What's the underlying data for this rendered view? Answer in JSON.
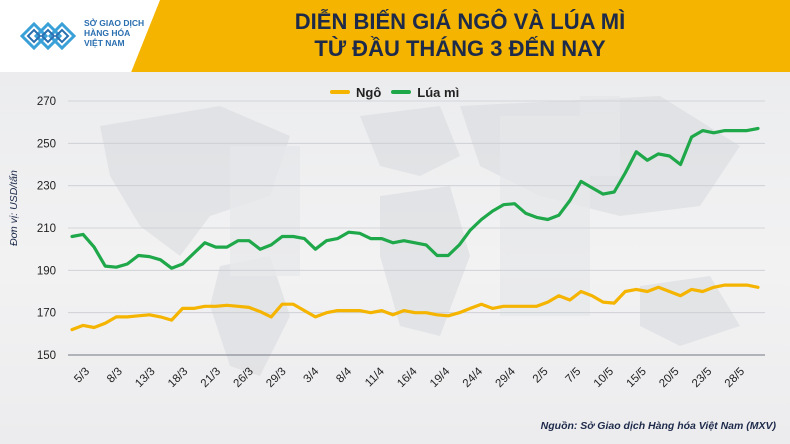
{
  "header": {
    "logo_lines": [
      "SỞ GIAO DỊCH",
      "HÀNG HÓA",
      "VIỆT NAM"
    ],
    "title_line1": "DIỄN BIẾN GIÁ NGÔ VÀ LÚA MÌ",
    "title_line2": "TỪ ĐẦU THÁNG 3 ĐẾN NAY"
  },
  "source": "Nguồn: Sở Giao dịch Hàng hóa Việt Nam (MXV)",
  "colors": {
    "ngo": "#f4b400",
    "luami": "#1fa84a",
    "header": "#f4b400"
  },
  "chart_data": {
    "type": "line",
    "title": "DIỄN BIẾN GIÁ NGÔ VÀ LÚA MÌ TỪ ĐẦU THÁNG 3 ĐẾN NAY",
    "ylabel": "Đơn vị: USD/tấn",
    "xlabel": "",
    "ylim": [
      150,
      270
    ],
    "yticks": [
      150,
      170,
      190,
      210,
      230,
      250,
      270
    ],
    "xtick_labels": [
      "5/3",
      "8/3",
      "13/3",
      "18/3",
      "21/3",
      "26/3",
      "29/3",
      "3/4",
      "8/4",
      "11/4",
      "16/4",
      "19/4",
      "24/4",
      "29/4",
      "2/5",
      "7/5",
      "10/5",
      "15/5",
      "20/5",
      "23/5",
      "28/5"
    ],
    "legend_position": "top-center",
    "grid": "horizontal",
    "series": [
      {
        "name": "Ngô",
        "color": "#f4b400",
        "values": [
          162,
          164,
          163,
          165,
          168,
          168,
          168.5,
          169,
          168,
          166.5,
          172,
          172,
          173,
          173,
          173.5,
          173,
          172.5,
          170.5,
          168,
          174,
          174,
          171,
          168,
          170,
          171,
          171,
          171,
          170,
          171,
          169,
          171,
          170,
          170,
          169,
          168.5,
          170,
          172,
          174,
          172,
          173,
          173,
          173,
          173,
          175,
          178,
          176,
          180,
          178,
          175,
          174.5,
          180,
          181,
          180,
          182,
          180,
          178,
          181,
          180,
          182,
          183,
          183,
          183,
          182
        ]
      },
      {
        "name": "Lúa mì",
        "color": "#1fa84a",
        "values": [
          206,
          207,
          201,
          192,
          191.5,
          193,
          197,
          196.5,
          195,
          191,
          193,
          198,
          203,
          201,
          201,
          204,
          204,
          200,
          202,
          206,
          206,
          205,
          200,
          204,
          205,
          208,
          207.5,
          205,
          205,
          203,
          204,
          203,
          202,
          197,
          197,
          202,
          209,
          214,
          218,
          221,
          221.5,
          217,
          215,
          214,
          216,
          223,
          232,
          229,
          226,
          227,
          236,
          246,
          242,
          245,
          244,
          240,
          253,
          256,
          255,
          256,
          256,
          256,
          257
        ]
      }
    ]
  }
}
